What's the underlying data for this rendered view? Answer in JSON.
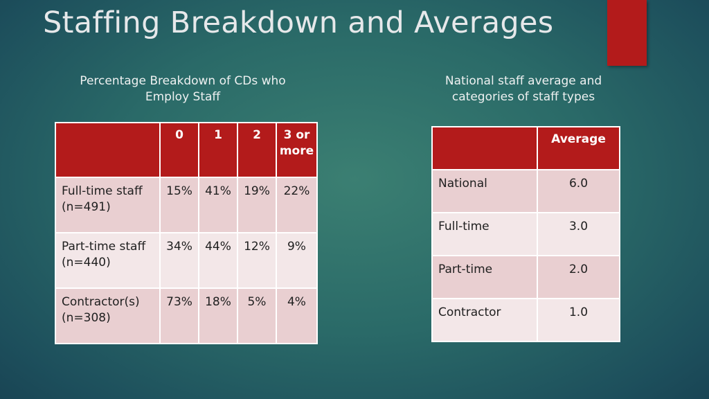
{
  "slide": {
    "title": "Staffing Breakdown and Averages"
  },
  "left_panel": {
    "caption_line1": "Percentage Breakdown of CDs who",
    "caption_line2": "Employ Staff",
    "table": {
      "columns": [
        "",
        "0",
        "1",
        "2",
        "3 or more"
      ],
      "rows": [
        {
          "label": "Full-time staff (n=491)",
          "values": [
            "15%",
            "41%",
            "19%",
            "22%"
          ]
        },
        {
          "label": "Part-time staff (n=440)",
          "values": [
            "34%",
            "44%",
            "12%",
            "9%"
          ]
        },
        {
          "label": "Contractor(s) (n=308)",
          "values": [
            "73%",
            "18%",
            "5%",
            "4%"
          ]
        }
      ]
    }
  },
  "right_panel": {
    "caption_line1": "National staff average and",
    "caption_line2": "categories of staff types",
    "table": {
      "columns": [
        "",
        "Average"
      ],
      "rows": [
        {
          "label": "National",
          "value": "6.0"
        },
        {
          "label": "Full-time",
          "value": "3.0"
        },
        {
          "label": "Part-time",
          "value": "2.0"
        },
        {
          "label": "Contractor",
          "value": "1.0"
        }
      ]
    }
  },
  "colors": {
    "header_red": "#b31b1b",
    "row_dark": "#e9cfd1",
    "row_light": "#f3e7e8",
    "background": "#2a6a68"
  }
}
